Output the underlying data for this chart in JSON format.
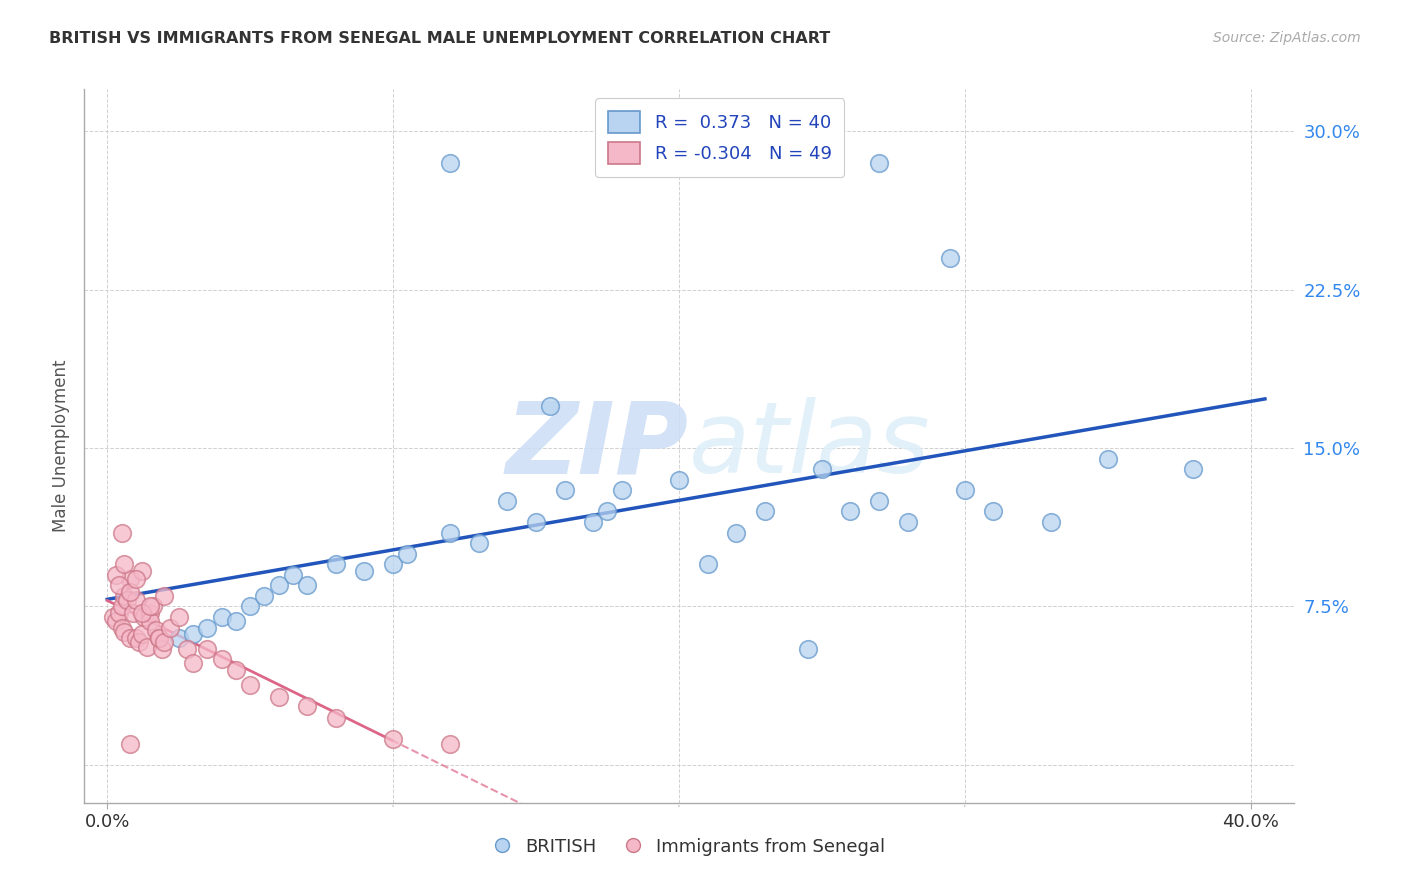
{
  "title": "BRITISH VS IMMIGRANTS FROM SENEGAL MALE UNEMPLOYMENT CORRELATION CHART",
  "source": "Source: ZipAtlas.com",
  "ylabel": "Male Unemployment",
  "ytick_vals": [
    0.0,
    0.075,
    0.15,
    0.225,
    0.3
  ],
  "ytick_labels": [
    "",
    "7.5%",
    "15.0%",
    "22.5%",
    "30.0%"
  ],
  "xtick_vals": [
    0.0,
    0.4
  ],
  "xtick_labels": [
    "0.0%",
    "40.0%"
  ],
  "xgrid_lines": [
    0.0,
    0.1,
    0.2,
    0.3,
    0.4
  ],
  "xlim": [
    -0.008,
    0.415
  ],
  "ylim": [
    -0.018,
    0.32
  ],
  "color_british_fill": "#b8d4f0",
  "color_british_edge": "#6699cc",
  "color_british_line": "#2255bb",
  "color_senegal_fill": "#f5b8c8",
  "color_senegal_edge": "#cc7788",
  "color_senegal_line": "#dd6688",
  "watermark_color": "#ddeeff",
  "background": "#ffffff",
  "british_x": [
    0.025,
    0.03,
    0.035,
    0.04,
    0.045,
    0.05,
    0.055,
    0.06,
    0.065,
    0.07,
    0.08,
    0.09,
    0.1,
    0.105,
    0.12,
    0.13,
    0.14,
    0.15,
    0.16,
    0.17,
    0.18,
    0.2,
    0.21,
    0.22,
    0.23,
    0.25,
    0.26,
    0.27,
    0.28,
    0.3,
    0.31,
    0.33,
    0.35,
    0.38,
    0.155,
    0.295,
    0.175,
    0.245,
    0.12,
    0.27
  ],
  "british_y": [
    0.06,
    0.062,
    0.065,
    0.07,
    0.068,
    0.075,
    0.08,
    0.085,
    0.09,
    0.085,
    0.095,
    0.092,
    0.095,
    0.1,
    0.11,
    0.105,
    0.125,
    0.115,
    0.13,
    0.115,
    0.13,
    0.135,
    0.095,
    0.11,
    0.12,
    0.14,
    0.12,
    0.125,
    0.115,
    0.13,
    0.12,
    0.115,
    0.145,
    0.14,
    0.17,
    0.24,
    0.12,
    0.055,
    0.285,
    0.285
  ],
  "senegal_x": [
    0.002,
    0.003,
    0.004,
    0.005,
    0.005,
    0.006,
    0.006,
    0.007,
    0.008,
    0.008,
    0.009,
    0.01,
    0.01,
    0.011,
    0.012,
    0.012,
    0.013,
    0.014,
    0.015,
    0.015,
    0.016,
    0.017,
    0.018,
    0.019,
    0.02,
    0.003,
    0.004,
    0.006,
    0.008,
    0.01,
    0.012,
    0.015,
    0.018,
    0.02,
    0.022,
    0.025,
    0.028,
    0.03,
    0.035,
    0.04,
    0.045,
    0.05,
    0.06,
    0.07,
    0.08,
    0.1,
    0.12,
    0.005,
    0.008
  ],
  "senegal_y": [
    0.07,
    0.068,
    0.072,
    0.075,
    0.065,
    0.08,
    0.063,
    0.078,
    0.06,
    0.088,
    0.072,
    0.078,
    0.06,
    0.058,
    0.062,
    0.092,
    0.07,
    0.056,
    0.072,
    0.068,
    0.075,
    0.064,
    0.06,
    0.055,
    0.08,
    0.09,
    0.085,
    0.095,
    0.082,
    0.088,
    0.072,
    0.075,
    0.06,
    0.058,
    0.065,
    0.07,
    0.055,
    0.048,
    0.055,
    0.05,
    0.045,
    0.038,
    0.032,
    0.028,
    0.022,
    0.012,
    0.01,
    0.11,
    0.01
  ]
}
